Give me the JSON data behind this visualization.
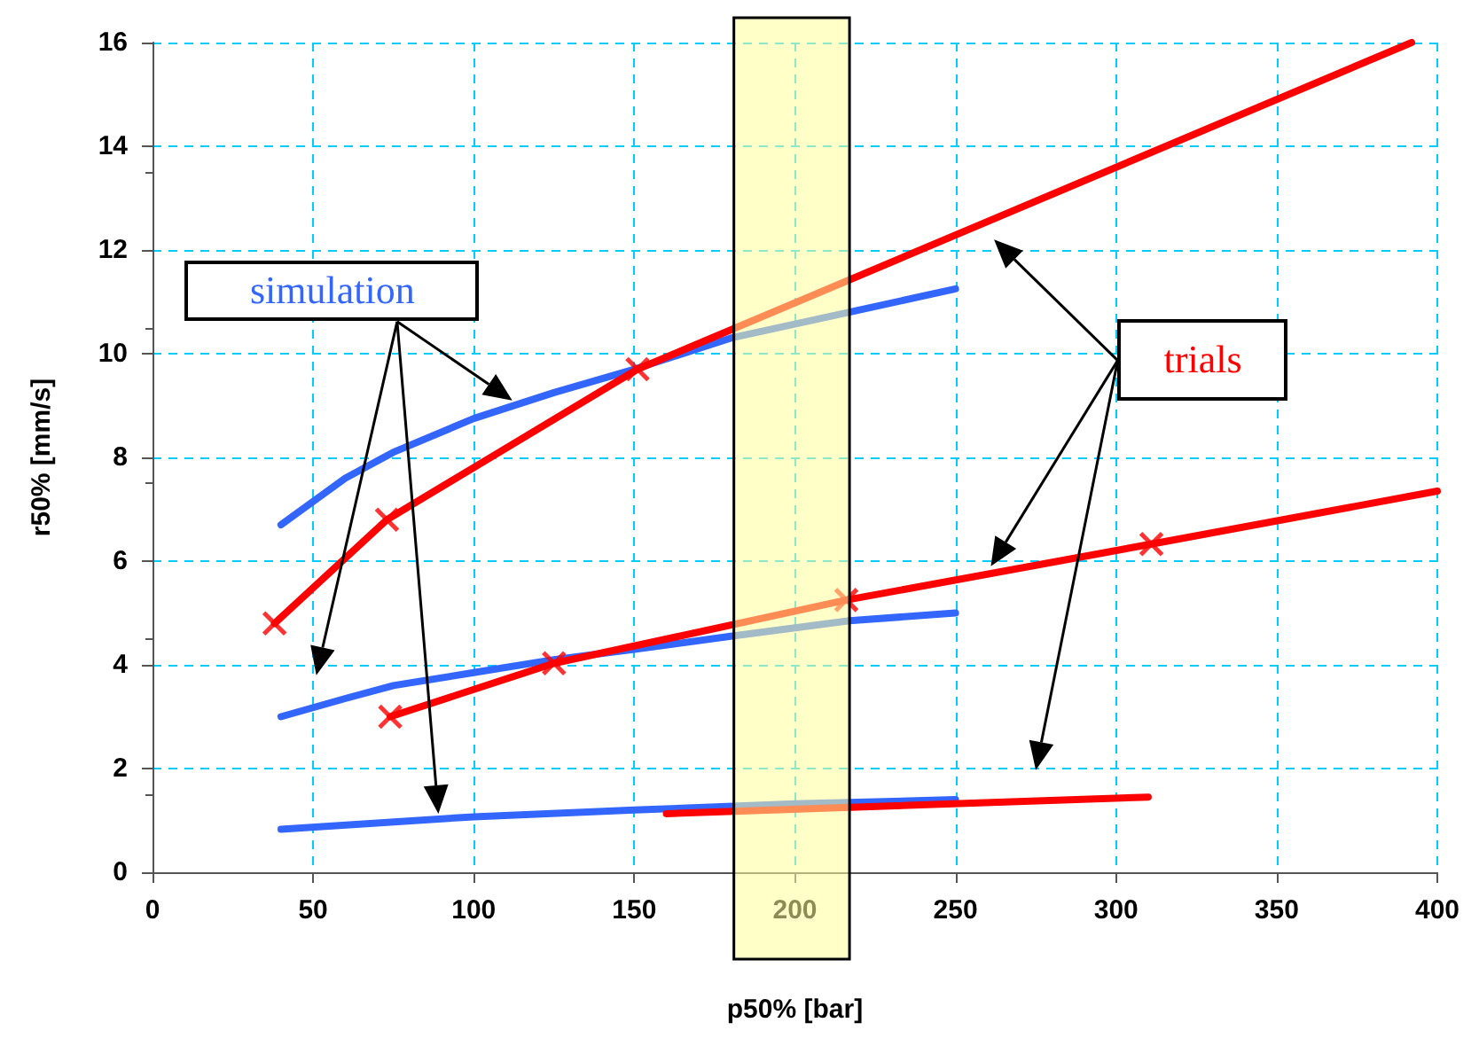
{
  "chart_data": {
    "type": "line",
    "xlabel": "p50% [bar]",
    "ylabel": "r50% [mm/s]",
    "xlim": [
      0,
      400
    ],
    "xticks": [
      0,
      50,
      100,
      150,
      200,
      250,
      300,
      350,
      400
    ],
    "ylim": [
      0,
      16
    ],
    "yticks": [
      0,
      2,
      4,
      6,
      8,
      10,
      12,
      14,
      16
    ],
    "grid": true,
    "line_style": "solid",
    "series": [
      {
        "color": "#3366ff",
        "marker": "none",
        "x": [
          40,
          60,
          75,
          100,
          125,
          150,
          180,
          217,
          250
        ],
        "values": [
          6.7,
          7.6,
          8.1,
          8.75,
          9.25,
          9.7,
          10.3,
          10.8,
          11.25
        ]
      },
      {
        "color": "#3366ff",
        "marker": "none",
        "x": [
          40,
          60,
          75,
          100,
          125,
          150,
          180,
          217,
          250
        ],
        "values": [
          3.0,
          3.35,
          3.6,
          3.85,
          4.1,
          4.3,
          4.55,
          4.85,
          5.0
        ]
      },
      {
        "color": "#3366ff",
        "marker": "none",
        "x": [
          40,
          100,
          150,
          200,
          250
        ],
        "values": [
          0.83,
          1.07,
          1.2,
          1.32,
          1.4
        ]
      },
      {
        "color": "#ff0000",
        "marker": "none",
        "x": [
          38,
          73,
          151,
          392
        ],
        "values": [
          4.8,
          6.8,
          9.7,
          16.0
        ]
      },
      {
        "color": "#ff0000",
        "marker": "none",
        "x": [
          74,
          125,
          216,
          311,
          400
        ],
        "values": [
          3.0,
          4.03,
          5.25,
          6.33,
          7.35
        ]
      },
      {
        "color": "#ff0000",
        "marker": "none",
        "x": [
          160,
          310
        ],
        "values": [
          1.13,
          1.45
        ]
      },
      {
        "type": "scatter",
        "color": "#ff0000",
        "marker": "cross",
        "x": [
          38,
          73,
          151,
          74,
          125,
          216,
          311
        ],
        "values": [
          4.8,
          6.8,
          9.7,
          3.0,
          4.03,
          5.25,
          6.33
        ]
      }
    ],
    "bands": [
      {
        "axis": "x",
        "from": 181,
        "to": 217,
        "color": "#ffff99"
      }
    ],
    "annotations": [
      "simulation",
      "trials"
    ]
  }
}
